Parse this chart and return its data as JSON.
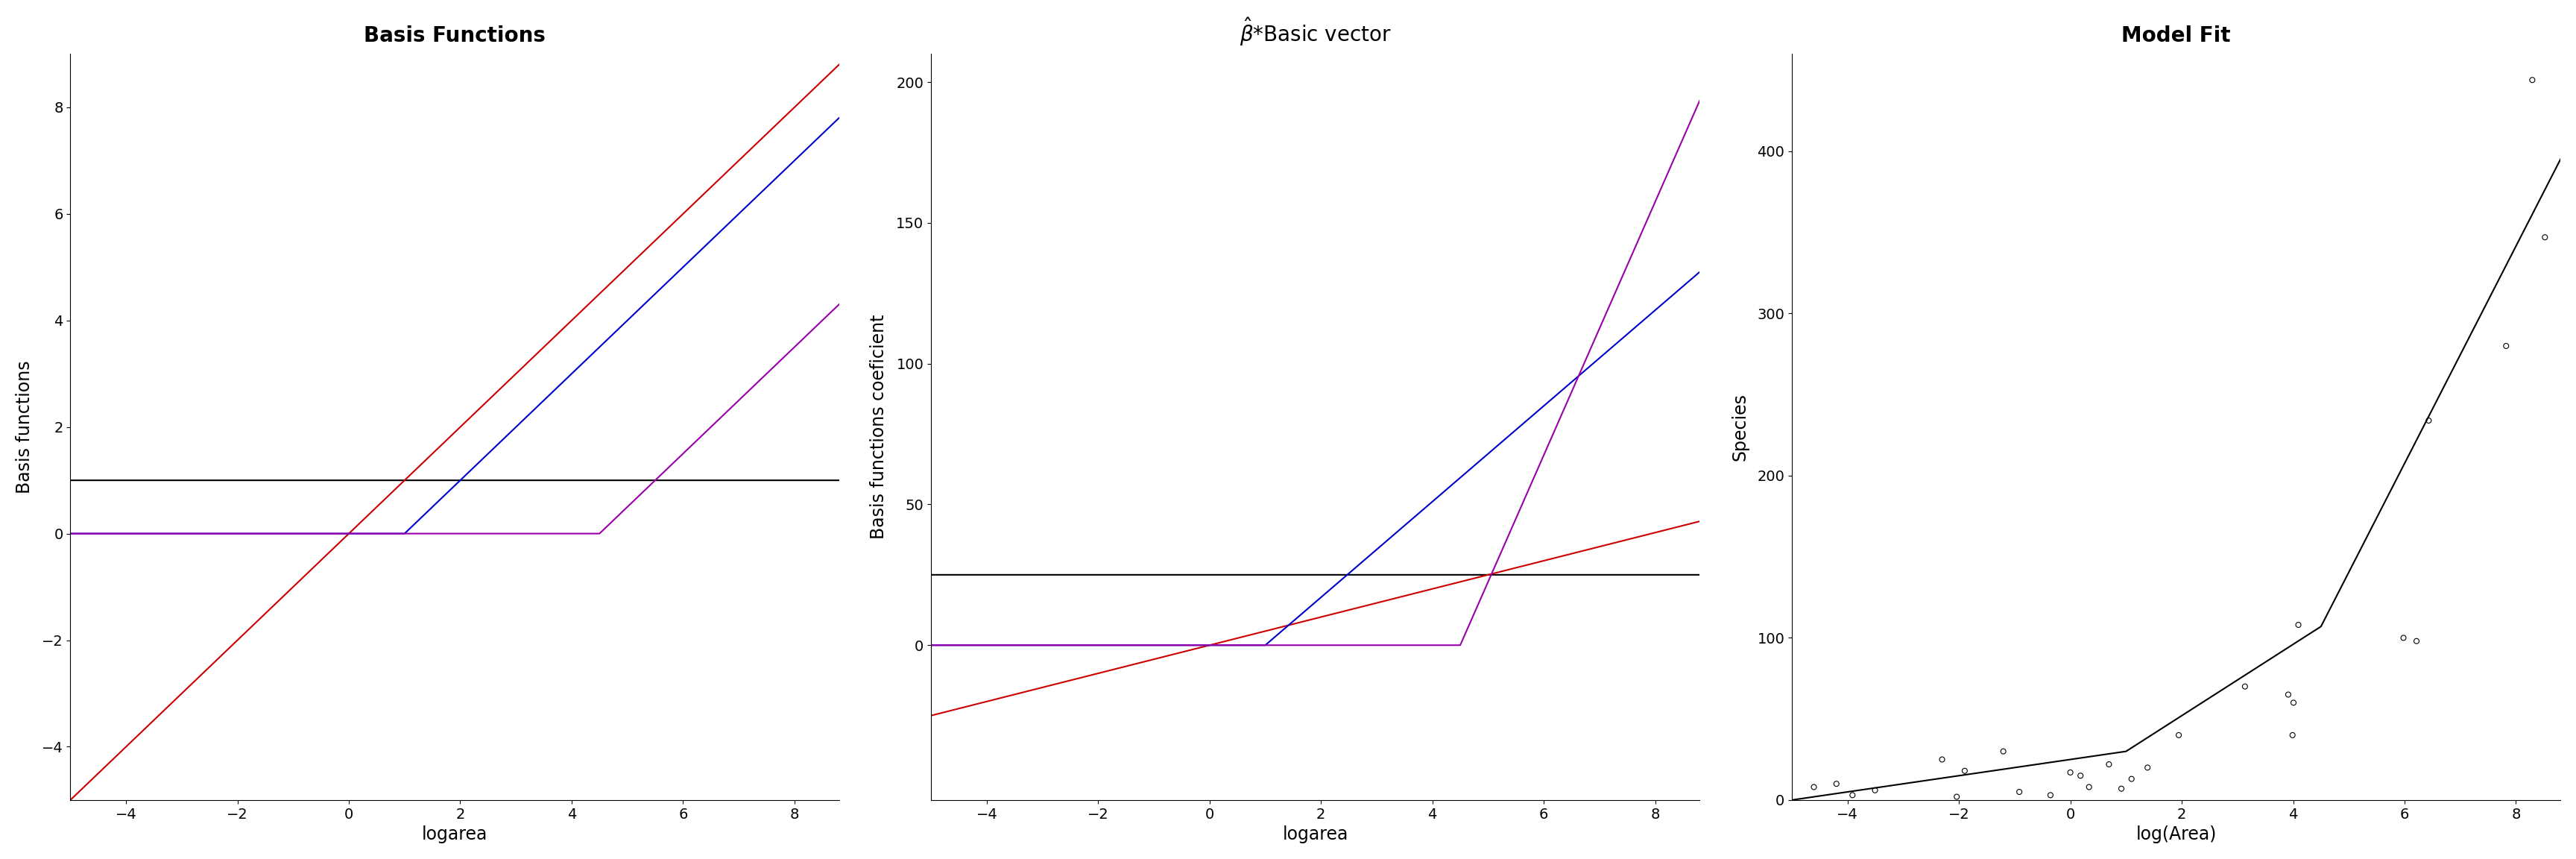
{
  "panel1_title": "Basis Functions",
  "panel2_title": "$\\hat{\\beta}$*Basic vector",
  "panel3_title": "Model Fit",
  "panel1_xlabel": "logarea",
  "panel2_xlabel": "logarea",
  "panel3_xlabel": "log(Area)",
  "panel1_ylabel": "Basis functions",
  "panel2_ylabel": "Basis functions coeficient",
  "panel3_ylabel": "Species",
  "knots": [
    1.0,
    4.5
  ],
  "x_range": [
    -5.0,
    8.8
  ],
  "beta0": 25.0,
  "beta1": 5.0,
  "beta2": 17.0,
  "beta3": 45.0,
  "panel1_ylim": [
    -5.0,
    9.0
  ],
  "panel1_yticks": [
    -4,
    -2,
    0,
    2,
    4,
    6,
    8
  ],
  "panel2_ylim": [
    -55.0,
    210.0
  ],
  "panel2_yticks": [
    0,
    50,
    100,
    150,
    200
  ],
  "panel3_ylim": [
    0,
    460
  ],
  "panel3_yticks": [
    0,
    100,
    200,
    300,
    400
  ],
  "xticks": [
    -4,
    -2,
    0,
    2,
    4,
    6,
    8
  ],
  "colors": {
    "black": "#000000",
    "red": "#cc0000",
    "blue": "#0000cc",
    "purple": "#9900aa"
  },
  "galapagos_logarea": [
    -4.605,
    -4.2,
    -3.912,
    -3.507,
    -2.303,
    -2.04,
    -1.897,
    -1.204,
    -0.916,
    -0.357,
    0.0,
    0.182,
    0.336,
    0.693,
    0.916,
    1.099,
    1.386,
    1.946,
    3.135,
    3.912,
    3.989,
    4.007,
    4.094,
    5.981,
    6.215,
    6.434,
    7.824,
    8.294,
    8.521
  ],
  "galapagos_species": [
    8,
    10,
    3,
    6,
    25,
    2,
    18,
    30,
    5,
    3,
    17,
    15,
    8,
    22,
    7,
    13,
    20,
    40,
    70,
    65,
    40,
    60,
    108,
    100,
    98,
    234,
    280,
    444,
    347
  ]
}
